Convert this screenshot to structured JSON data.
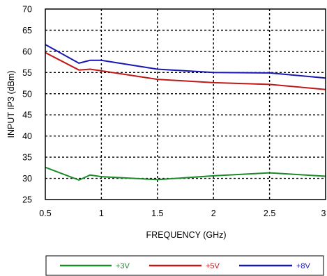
{
  "chart_data": {
    "type": "line",
    "xlabel": "FREQUENCY (GHz)",
    "ylabel": "INPUT IP3 (dBm)",
    "xlim": [
      0.5,
      3
    ],
    "ylim": [
      25,
      70
    ],
    "x_ticks": [
      0.5,
      1,
      1.5,
      2,
      2.5,
      3
    ],
    "x_tick_labels": [
      "0.5",
      "1",
      "1.5",
      "2",
      "2.5",
      "3"
    ],
    "y_ticks": [
      25,
      30,
      35,
      40,
      45,
      50,
      55,
      60,
      65,
      70
    ],
    "y_tick_labels": [
      "25",
      "30",
      "35",
      "40",
      "45",
      "50",
      "55",
      "60",
      "65",
      "70"
    ],
    "grid": true,
    "legend_position": "bottom",
    "series": [
      {
        "name": "+3V",
        "color": "#1a8a2a",
        "x": [
          0.5,
          0.8,
          0.9,
          1.0,
          1.5,
          2.0,
          2.5,
          3.0
        ],
        "y": [
          32.6,
          29.6,
          30.8,
          30.4,
          29.7,
          30.6,
          31.3,
          30.5
        ]
      },
      {
        "name": "+5V",
        "color": "#c01818",
        "x": [
          0.5,
          0.8,
          0.9,
          1.0,
          1.5,
          2.0,
          2.5,
          3.0
        ],
        "y": [
          59.7,
          55.6,
          55.8,
          55.4,
          53.4,
          52.6,
          52.2,
          51.0
        ]
      },
      {
        "name": "+8V",
        "color": "#1818b0",
        "x": [
          0.5,
          0.8,
          0.9,
          1.0,
          1.5,
          2.0,
          2.5,
          3.0
        ],
        "y": [
          61.6,
          57.2,
          57.9,
          57.9,
          55.8,
          55.0,
          54.9,
          53.7
        ]
      }
    ]
  }
}
